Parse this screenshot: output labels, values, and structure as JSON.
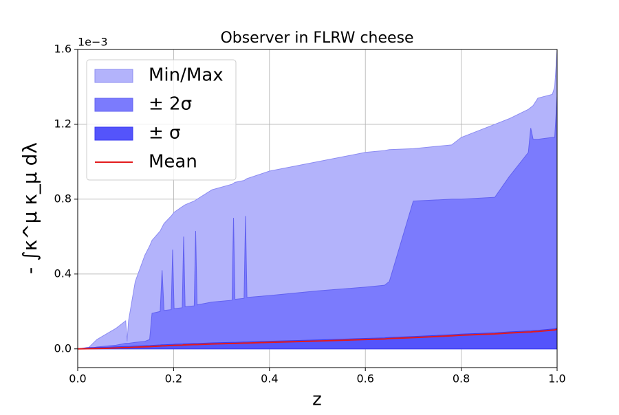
{
  "chart_data": {
    "type": "area",
    "title": "Observer in FLRW cheese",
    "x_label": "z",
    "y_label": "- ∫κ^μ κ_μ dλ",
    "y_offset_label": "1e−3",
    "xlim": [
      0,
      1
    ],
    "ylim": [
      -0.1,
      1.6
    ],
    "xticks": [
      {
        "value": 0,
        "label": "0.0"
      },
      0.2,
      0.4,
      0.6,
      0.8,
      {
        "value": 1,
        "label": "1.0"
      }
    ],
    "yticks": [
      {
        "value": 0,
        "label": "0.0"
      },
      0.4,
      0.8,
      1.2,
      1.6
    ],
    "grid": true,
    "legend": "upper left",
    "x": [
      0,
      0.02,
      0.04,
      0.06,
      0.08,
      0.1,
      0.103,
      0.106,
      0.12,
      0.14,
      0.15,
      0.155,
      0.172,
      0.176,
      0.18,
      0.195,
      0.198,
      0.201,
      0.218,
      0.221,
      0.224,
      0.243,
      0.246,
      0.249,
      0.28,
      0.322,
      0.325,
      0.328,
      0.347,
      0.35,
      0.353,
      0.4,
      0.5,
      0.6,
      0.64,
      0.65,
      0.7,
      0.78,
      0.8,
      0.87,
      0.9,
      0.94,
      0.945,
      0.95,
      0.96,
      0.99,
      0.995,
      1.0
    ],
    "series": [
      {
        "name": "Min/Max",
        "type": "band",
        "color": "#b3b3fb",
        "edge_color": "#8c8cf2",
        "lower": [
          0,
          0,
          0,
          0,
          0,
          0,
          0,
          0,
          0,
          0,
          0,
          0,
          0,
          0,
          0,
          0,
          0,
          0,
          0,
          0,
          0,
          0,
          0,
          0,
          0,
          0,
          0,
          0,
          0,
          0,
          0,
          0,
          0,
          0,
          0,
          0,
          0,
          0,
          0,
          0,
          0,
          0,
          0,
          0,
          0,
          0,
          0,
          0
        ],
        "upper": [
          0,
          0,
          0.05,
          0.08,
          0.11,
          0.15,
          0.04,
          0.15,
          0.36,
          0.5,
          0.55,
          0.58,
          0.63,
          0.65,
          0.67,
          0.71,
          0.72,
          0.73,
          0.76,
          0.765,
          0.77,
          0.79,
          0.795,
          0.8,
          0.85,
          0.88,
          0.885,
          0.89,
          0.9,
          0.905,
          0.91,
          0.95,
          1.0,
          1.05,
          1.06,
          1.065,
          1.07,
          1.09,
          1.13,
          1.2,
          1.23,
          1.28,
          1.29,
          1.3,
          1.34,
          1.36,
          1.4,
          1.6
        ]
      },
      {
        "name": "± 2σ",
        "type": "band",
        "color": "#7b7bfd",
        "edge_color": "#6262f0",
        "lower": [
          0,
          0,
          0,
          0,
          0,
          0,
          0,
          0,
          0,
          0,
          0,
          0,
          0,
          0,
          0,
          0,
          0,
          0,
          0,
          0,
          0,
          0,
          0,
          0,
          0,
          0,
          0,
          0,
          0,
          0,
          0,
          0,
          0,
          0,
          0,
          0,
          0,
          0,
          0,
          0,
          0,
          0,
          0,
          0,
          0,
          0,
          0,
          0
        ],
        "upper": [
          0,
          0,
          0.01,
          0.015,
          0.02,
          0.03,
          0.03,
          0.03,
          0.035,
          0.04,
          0.05,
          0.19,
          0.2,
          0.42,
          0.205,
          0.21,
          0.53,
          0.215,
          0.22,
          0.6,
          0.225,
          0.23,
          0.63,
          0.235,
          0.25,
          0.26,
          0.7,
          0.265,
          0.27,
          0.71,
          0.275,
          0.285,
          0.31,
          0.33,
          0.34,
          0.36,
          0.79,
          0.8,
          0.8,
          0.81,
          0.92,
          1.05,
          1.18,
          1.12,
          1.12,
          1.13,
          1.13,
          1.35
        ]
      },
      {
        "name": "± σ",
        "type": "band",
        "color": "#5454fb",
        "edge_color": "#3a3af0",
        "lower": [
          0,
          0,
          0,
          0,
          0,
          0,
          0,
          0,
          0,
          0,
          0,
          0,
          0,
          0,
          0,
          0,
          0,
          0,
          0,
          0,
          0,
          0,
          0,
          0,
          0,
          0,
          0,
          0,
          0,
          0,
          0,
          0,
          0,
          0,
          0,
          0,
          0,
          0,
          0,
          0,
          0,
          0,
          0,
          0,
          0,
          0,
          0,
          0
        ],
        "upper": [
          0,
          0.007,
          0.008,
          0.009,
          0.011,
          0.013,
          0.013,
          0.013,
          0.015,
          0.017,
          0.018,
          0.019,
          0.021,
          0.022,
          0.022,
          0.024,
          0.024,
          0.025,
          0.026,
          0.027,
          0.027,
          0.029,
          0.029,
          0.029,
          0.032,
          0.035,
          0.035,
          0.035,
          0.037,
          0.037,
          0.037,
          0.041,
          0.048,
          0.056,
          0.059,
          0.061,
          0.066,
          0.076,
          0.079,
          0.086,
          0.091,
          0.096,
          0.096,
          0.098,
          0.099,
          0.106,
          0.107,
          0.111
        ]
      },
      {
        "name": "Mean",
        "type": "line",
        "color": "#e31a1c",
        "values": [
          0,
          0.001,
          0.002,
          0.003,
          0.005,
          0.007,
          0.007,
          0.007,
          0.009,
          0.011,
          0.012,
          0.013,
          0.015,
          0.016,
          0.016,
          0.018,
          0.018,
          0.019,
          0.02,
          0.021,
          0.021,
          0.023,
          0.023,
          0.023,
          0.026,
          0.029,
          0.029,
          0.029,
          0.031,
          0.031,
          0.031,
          0.035,
          0.042,
          0.05,
          0.053,
          0.055,
          0.06,
          0.07,
          0.073,
          0.08,
          0.085,
          0.09,
          0.09,
          0.092,
          0.093,
          0.1,
          0.101,
          0.105
        ]
      }
    ]
  }
}
